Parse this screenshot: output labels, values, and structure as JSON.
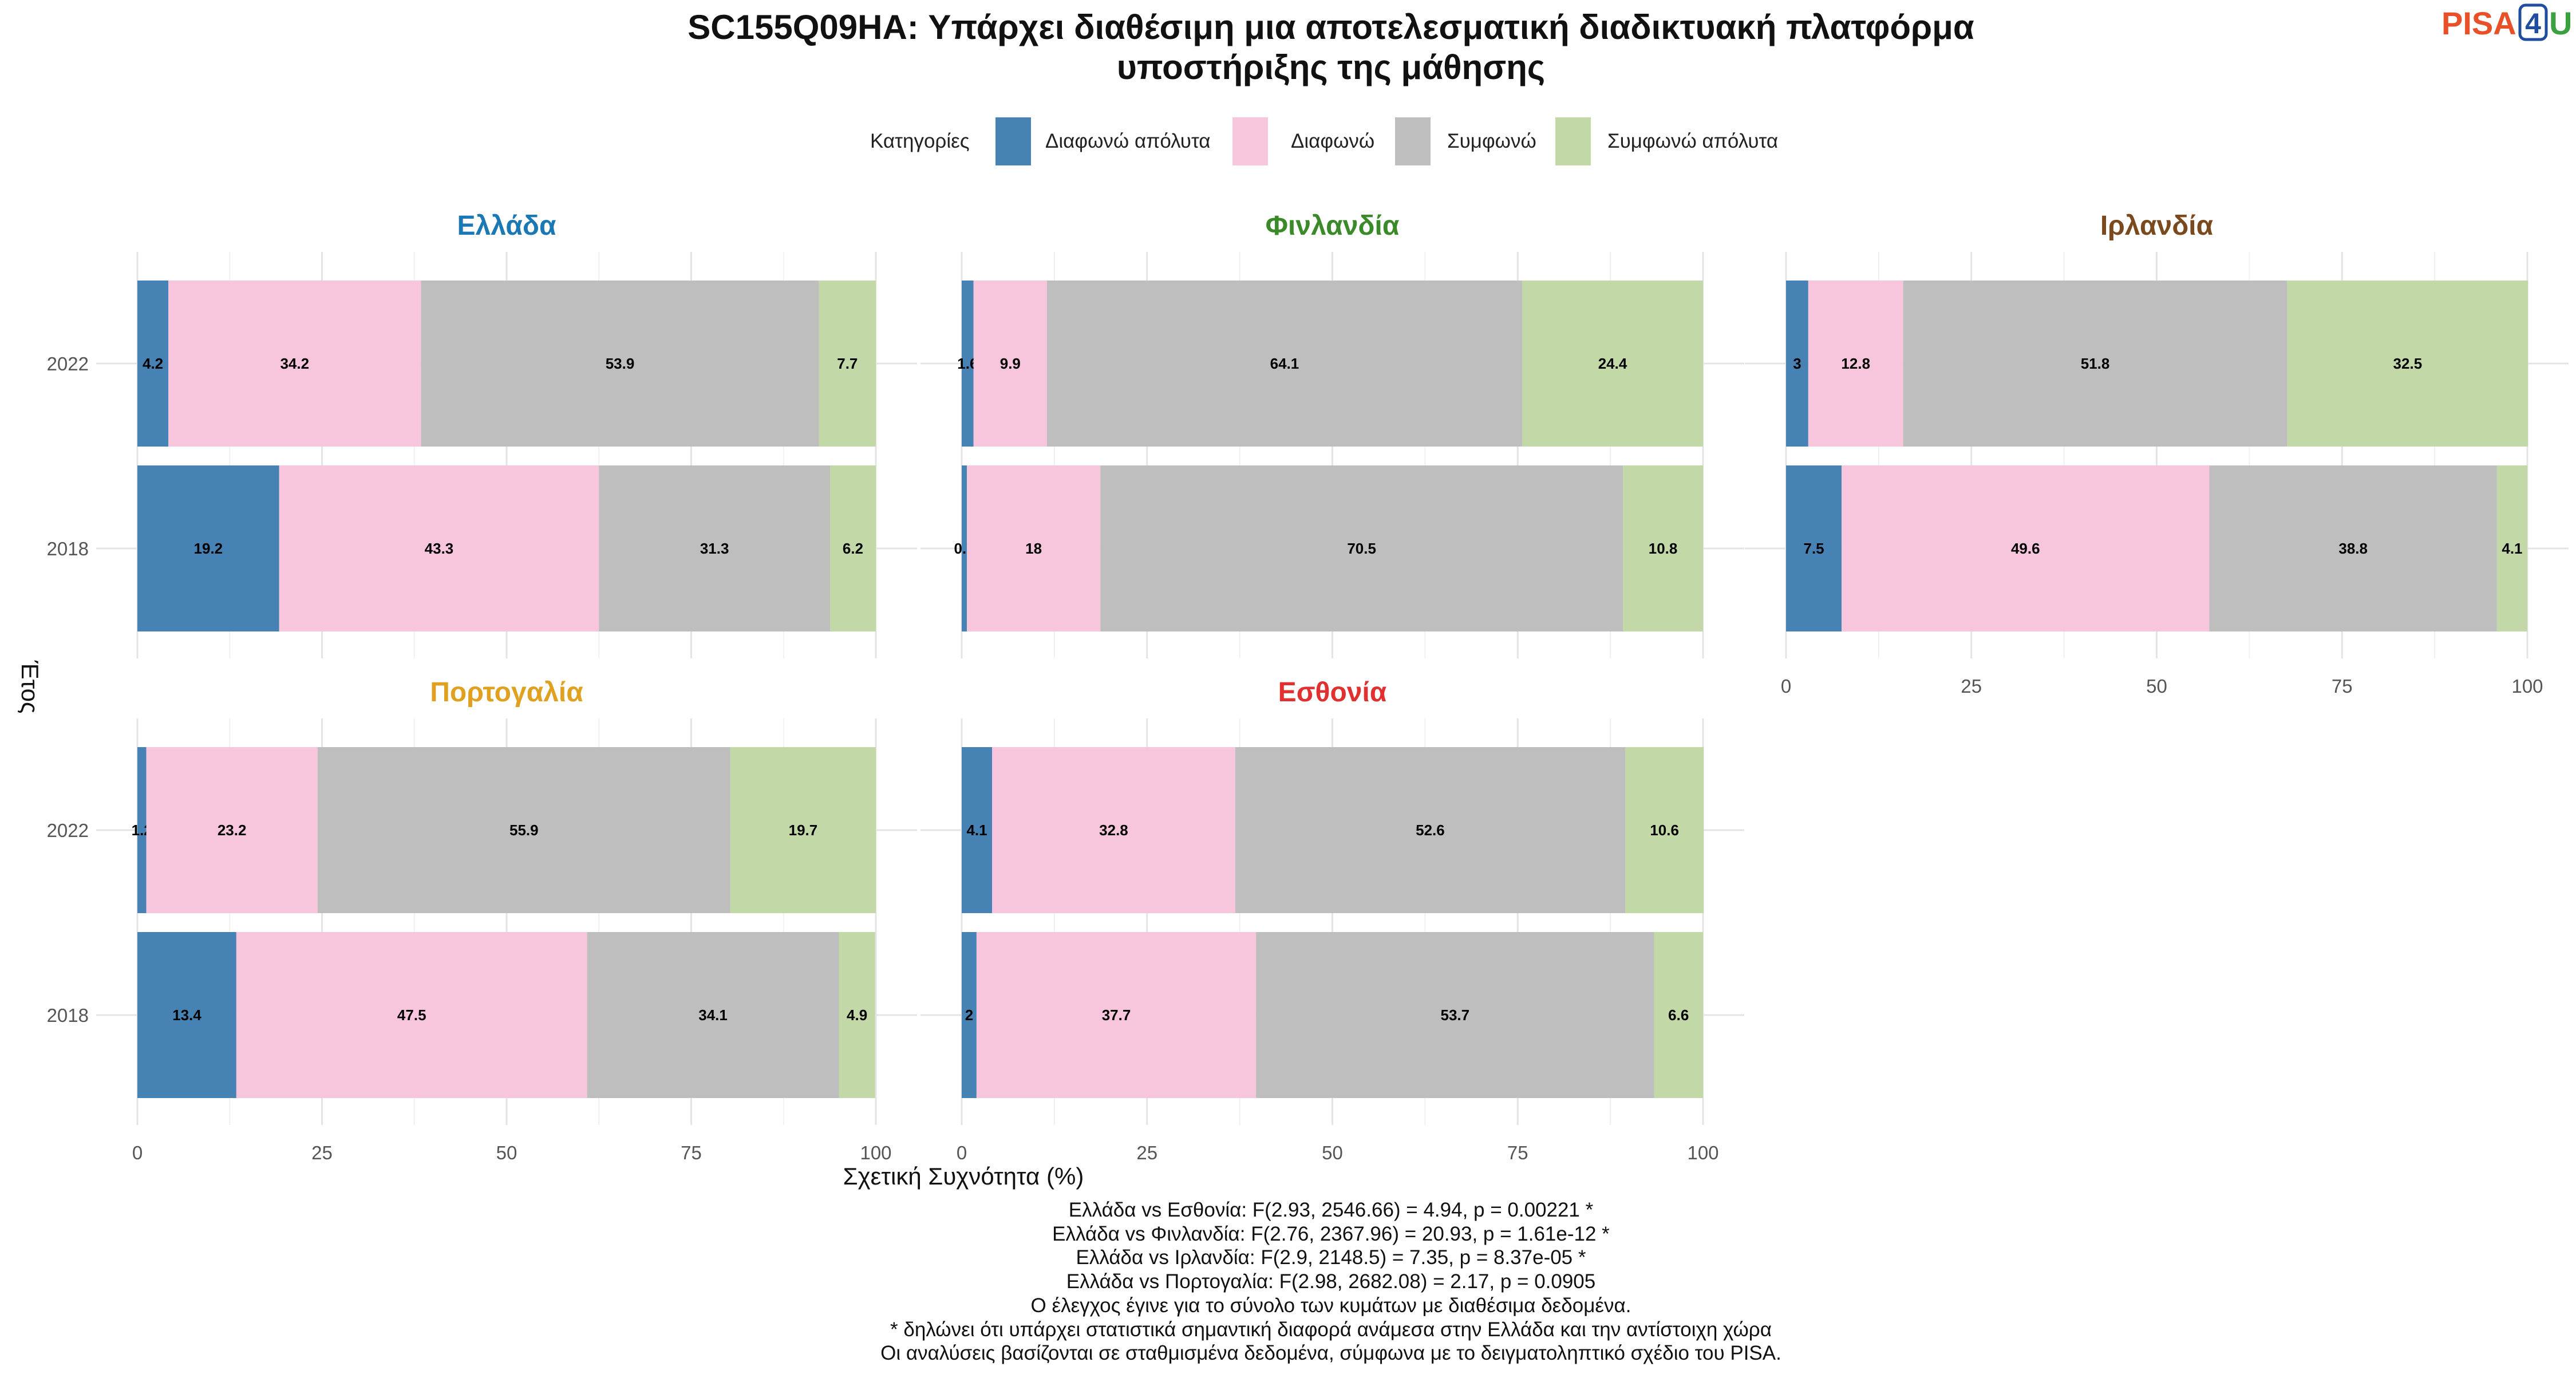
{
  "title_line1": "SC155Q09HA: Υπάρχει διαθέσιμη μια αποτελεσματική διαδικτυακή πλατφόρμα",
  "title_line2": "υποστήριξης της μάθησης",
  "logo": {
    "part1": "PISA",
    "part2": "4",
    "part3": "U",
    "colors": {
      "pisa": "#e8502a",
      "four": "#1f4e9e",
      "u": "#3aa040"
    }
  },
  "legend": {
    "title": "Κατηγορίες",
    "items": [
      {
        "label": "Διαφωνώ απόλυτα",
        "color": "#4682b4"
      },
      {
        "label": "Διαφωνώ",
        "color": "#f7c6dc"
      },
      {
        "label": "Συμφωνώ",
        "color": "#bebebe"
      },
      {
        "label": "Συμφωνώ απόλυτα",
        "color": "#c2d8a6"
      }
    ]
  },
  "chart_data": {
    "type": "bar",
    "orientation": "horizontal",
    "stacked": true,
    "categories": [
      "Διαφωνώ απόλυτα",
      "Διαφωνώ",
      "Συμφωνώ",
      "Συμφωνώ απόλυτα"
    ],
    "xlabel": "Σχετική Συχνότητα (%)",
    "ylabel": "Έτος",
    "xlim": [
      0,
      100
    ],
    "xticks": [
      "0",
      "25",
      "50",
      "75",
      "100"
    ],
    "years": [
      "2022",
      "2018"
    ],
    "panels": [
      {
        "name": "Ελλάδα",
        "color": "#1a78b4",
        "rows": [
          {
            "year": "2022",
            "values": [
              4.2,
              34.2,
              53.9,
              7.7
            ]
          },
          {
            "year": "2018",
            "values": [
              19.2,
              43.3,
              31.3,
              6.2
            ]
          }
        ]
      },
      {
        "name": "Φινλανδία",
        "color": "#3a8a2a",
        "rows": [
          {
            "year": "2022",
            "values": [
              1.6,
              9.9,
              64.1,
              24.4
            ]
          },
          {
            "year": "2018",
            "values": [
              0.7,
              18,
              70.5,
              10.8
            ]
          }
        ]
      },
      {
        "name": "Ιρλανδία",
        "color": "#7a4a1e",
        "rows": [
          {
            "year": "2022",
            "values": [
              3,
              12.8,
              51.8,
              32.5
            ]
          },
          {
            "year": "2018",
            "values": [
              7.5,
              49.6,
              38.8,
              4.1
            ]
          }
        ]
      },
      {
        "name": "Πορτογαλία",
        "color": "#e0a020",
        "rows": [
          {
            "year": "2022",
            "values": [
              1.2,
              23.2,
              55.9,
              19.7
            ]
          },
          {
            "year": "2018",
            "values": [
              13.4,
              47.5,
              34.1,
              4.9
            ]
          }
        ]
      },
      {
        "name": "Εσθονία",
        "color": "#e03030",
        "rows": [
          {
            "year": "2022",
            "values": [
              4.1,
              32.8,
              52.6,
              10.6
            ]
          },
          {
            "year": "2018",
            "values": [
              2,
              37.7,
              53.7,
              6.6
            ]
          }
        ]
      }
    ]
  },
  "footnotes": [
    "Ελλάδα vs Εσθονία: F(2.93, 2546.66) = 4.94, p = 0.00221 *",
    "Ελλάδα vs Φινλανδία: F(2.76, 2367.96) = 20.93, p = 1.61e-12 *",
    "Ελλάδα vs Ιρλανδία: F(2.9, 2148.5) = 7.35, p = 8.37e-05 *",
    "Ελλάδα vs Πορτογαλία: F(2.98, 2682.08) = 2.17, p = 0.0905",
    "Ο έλεγχος έγινε για το σύνολο των κυμάτων με διαθέσιμα δεδομένα.",
    "* δηλώνει ότι υπάρχει στατιστικά σημαντική διαφορά ανάμεσα στην Ελλάδα και την αντίστοιχη χώρα",
    "Οι αναλύσεις βασίζονται σε σταθμισμένα δεδομένα, σύμφωνα με το δειγματοληπτικό σχέδιο του PISA."
  ]
}
